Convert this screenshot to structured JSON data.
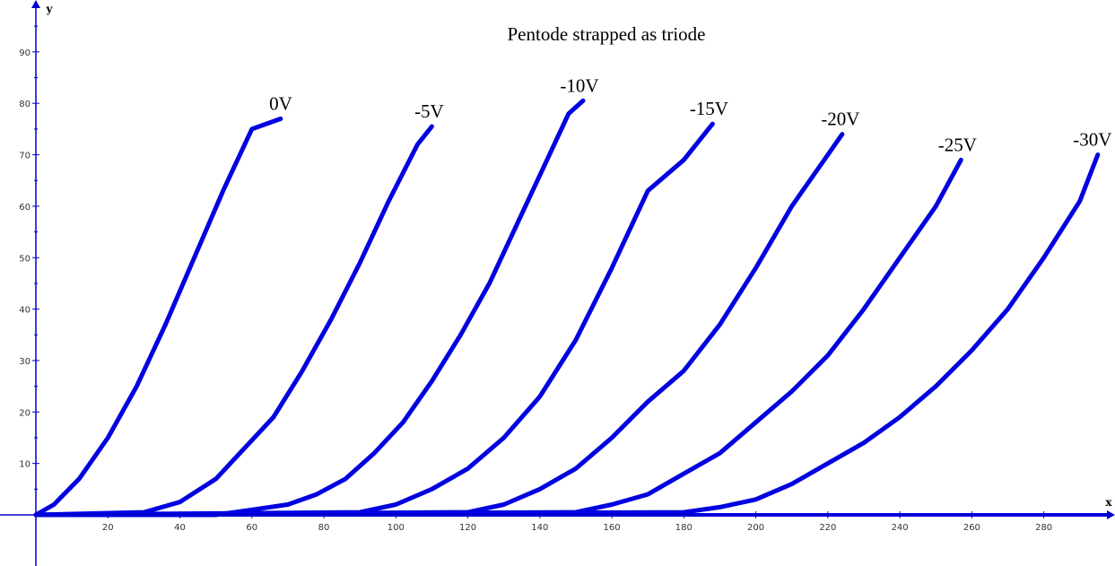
{
  "chart_data": {
    "type": "line",
    "title": "Pentode strapped as triode",
    "xlabel": "x",
    "ylabel": "y",
    "xlim": [
      0,
      300
    ],
    "ylim": [
      -10,
      100
    ],
    "xticks": [
      20,
      40,
      60,
      80,
      100,
      120,
      140,
      160,
      180,
      200,
      220,
      240,
      260,
      280
    ],
    "yticks": [
      10,
      20,
      30,
      40,
      50,
      60,
      70,
      80,
      90
    ],
    "grid": false,
    "line_color": "#0000e0",
    "axis_color": "#0000cc",
    "series": [
      {
        "name": "0V",
        "x": [
          0,
          5,
          12,
          20,
          28,
          36,
          44,
          52,
          60,
          68
        ],
        "y": [
          0,
          2,
          7,
          15,
          25,
          37,
          50,
          63,
          75,
          77
        ]
      },
      {
        "name": "-5V",
        "x": [
          0,
          30,
          40,
          50,
          58,
          66,
          74,
          82,
          90,
          98,
          106,
          110
        ],
        "y": [
          0,
          0.5,
          2.5,
          7,
          13,
          19,
          28,
          38,
          49,
          61,
          72,
          75.5
        ]
      },
      {
        "name": "-10V",
        "x": [
          0,
          50,
          60,
          70,
          78,
          86,
          94,
          102,
          110,
          118,
          126,
          134,
          142,
          148,
          152
        ],
        "y": [
          0,
          0,
          1,
          2,
          4,
          7,
          12,
          18,
          26,
          35,
          45,
          57,
          69,
          78,
          80.5
        ]
      },
      {
        "name": "-15V",
        "x": [
          0,
          90,
          100,
          110,
          120,
          130,
          140,
          150,
          160,
          170,
          180,
          188
        ],
        "y": [
          0,
          0.5,
          2,
          5,
          9,
          15,
          23,
          34,
          48,
          63,
          69,
          76
        ]
      },
      {
        "name": "-20V",
        "x": [
          0,
          120,
          130,
          140,
          150,
          160,
          170,
          180,
          190,
          200,
          210,
          220,
          224
        ],
        "y": [
          0,
          0.5,
          2,
          5,
          9,
          15,
          22,
          28,
          37,
          48,
          60,
          70,
          74
        ]
      },
      {
        "name": "-25V",
        "x": [
          0,
          150,
          160,
          170,
          180,
          190,
          200,
          210,
          220,
          230,
          240,
          250,
          257
        ],
        "y": [
          0,
          0.5,
          2,
          4,
          8,
          12,
          18,
          24,
          31,
          40,
          50,
          60,
          69
        ]
      },
      {
        "name": "-30V",
        "x": [
          0,
          180,
          190,
          200,
          210,
          220,
          230,
          240,
          250,
          260,
          270,
          280,
          290,
          295
        ],
        "y": [
          0,
          0.5,
          1.5,
          3,
          6,
          10,
          14,
          19,
          25,
          32,
          40,
          50,
          61,
          70
        ]
      }
    ]
  }
}
